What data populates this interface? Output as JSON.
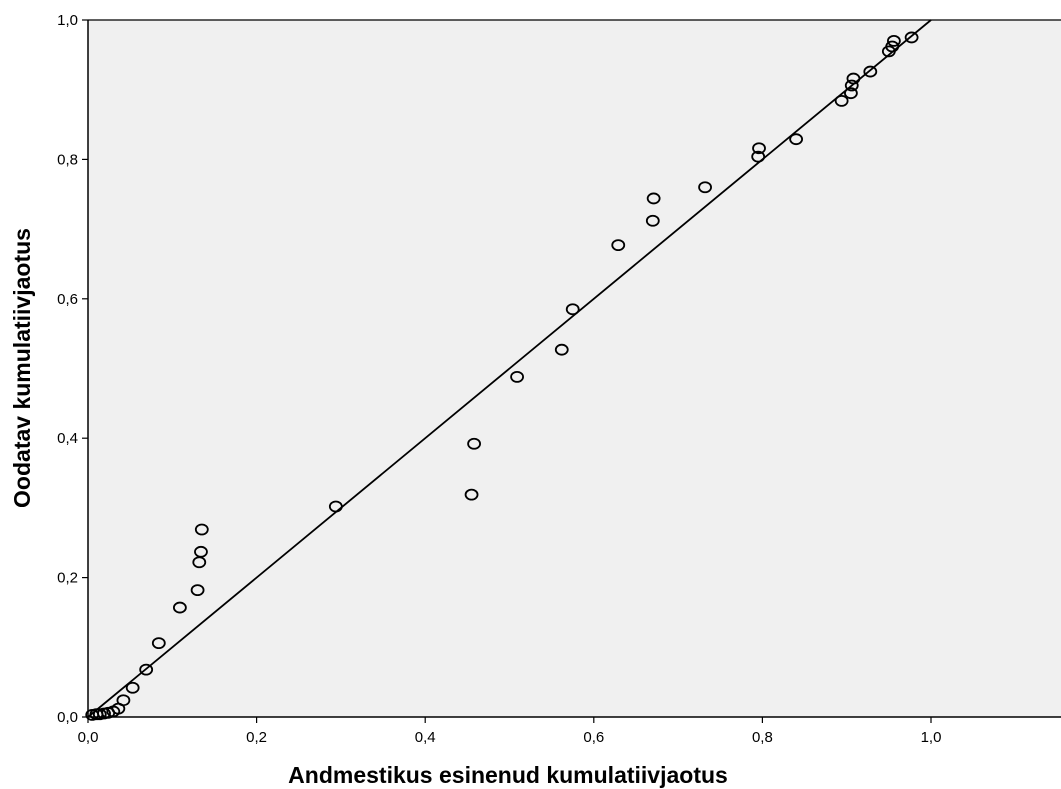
{
  "chart_data": {
    "type": "scatter",
    "xlabel": "Andmestikus esinenud kumulatiivjaotus",
    "ylabel": "Oodatav kumulatiivjaotus",
    "xlim": [
      0.0,
      1.15
    ],
    "ylim": [
      0.0,
      1.0
    ],
    "x_ticks": [
      "0,0",
      "0,2",
      "0,4",
      "0,6",
      "0,8",
      "1,0"
    ],
    "y_ticks": [
      "0,0",
      "0,2",
      "0,4",
      "0,6",
      "0,8",
      "1,0"
    ],
    "grid": false,
    "plot_background": "#f0f0f0",
    "marker": "open-circle",
    "reference_line": {
      "from": [
        0.0,
        0.0
      ],
      "to": [
        1.0,
        1.0
      ]
    },
    "points": [
      {
        "x": 0.005,
        "y": 0.003
      },
      {
        "x": 0.01,
        "y": 0.004
      },
      {
        "x": 0.014,
        "y": 0.004
      },
      {
        "x": 0.019,
        "y": 0.005
      },
      {
        "x": 0.024,
        "y": 0.006
      },
      {
        "x": 0.03,
        "y": 0.008
      },
      {
        "x": 0.036,
        "y": 0.012
      },
      {
        "x": 0.042,
        "y": 0.024
      },
      {
        "x": 0.053,
        "y": 0.042
      },
      {
        "x": 0.069,
        "y": 0.068
      },
      {
        "x": 0.084,
        "y": 0.106
      },
      {
        "x": 0.109,
        "y": 0.157
      },
      {
        "x": 0.13,
        "y": 0.182
      },
      {
        "x": 0.132,
        "y": 0.222
      },
      {
        "x": 0.134,
        "y": 0.237
      },
      {
        "x": 0.135,
        "y": 0.269
      },
      {
        "x": 0.294,
        "y": 0.302
      },
      {
        "x": 0.455,
        "y": 0.319
      },
      {
        "x": 0.458,
        "y": 0.392
      },
      {
        "x": 0.509,
        "y": 0.488
      },
      {
        "x": 0.562,
        "y": 0.527
      },
      {
        "x": 0.575,
        "y": 0.585
      },
      {
        "x": 0.629,
        "y": 0.677
      },
      {
        "x": 0.67,
        "y": 0.712
      },
      {
        "x": 0.671,
        "y": 0.744
      },
      {
        "x": 0.732,
        "y": 0.76
      },
      {
        "x": 0.795,
        "y": 0.804
      },
      {
        "x": 0.796,
        "y": 0.816
      },
      {
        "x": 0.84,
        "y": 0.829
      },
      {
        "x": 0.894,
        "y": 0.884
      },
      {
        "x": 0.905,
        "y": 0.895
      },
      {
        "x": 0.906,
        "y": 0.906
      },
      {
        "x": 0.908,
        "y": 0.916
      },
      {
        "x": 0.928,
        "y": 0.926
      },
      {
        "x": 0.95,
        "y": 0.955
      },
      {
        "x": 0.954,
        "y": 0.962
      },
      {
        "x": 0.956,
        "y": 0.97
      },
      {
        "x": 0.977,
        "y": 0.975
      }
    ]
  }
}
